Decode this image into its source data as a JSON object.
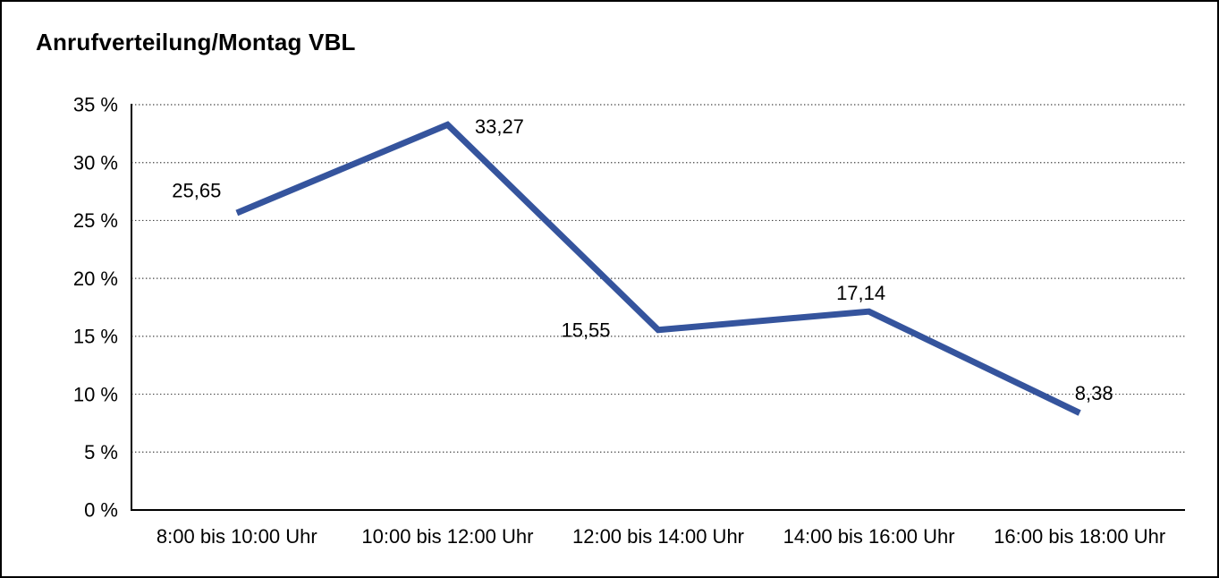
{
  "title": "Anrufverteilung/Montag VBL",
  "colors": {
    "line": "#35549d",
    "axis": "#000000",
    "gridline": "#444444",
    "text": "#000000",
    "background": "#ffffff",
    "frame_border": "#000000"
  },
  "chart_data": {
    "type": "line",
    "title": "Anrufverteilung/Montag VBL",
    "categories": [
      "8:00 bis 10:00 Uhr",
      "10:00 bis 12:00 Uhr",
      "12:00 bis 14:00 Uhr",
      "14:00 bis 16:00 Uhr",
      "16:00 bis 18:00 Uhr"
    ],
    "values": [
      25.65,
      33.27,
      15.55,
      17.14,
      8.38
    ],
    "value_labels": [
      "25,65",
      "33,27",
      "15,55",
      "17,14",
      "8,38"
    ],
    "xlabel": "",
    "ylabel": "",
    "ylim": [
      0,
      35
    ],
    "ytick_step": 5,
    "ytick_labels": [
      "0 %",
      "5 %",
      "10 %",
      "15 %",
      "20 %",
      "25 %",
      "30 %",
      "35 %"
    ],
    "grid": "horizontal-dotted",
    "legend": "none",
    "line_color": "#35549d",
    "line_width": 7
  }
}
